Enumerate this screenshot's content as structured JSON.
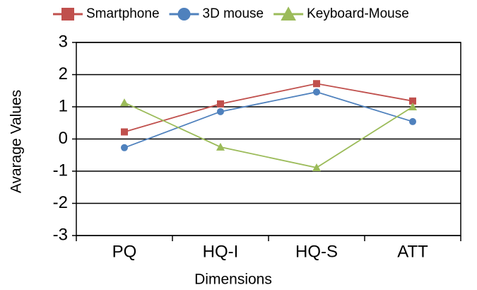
{
  "chart_data": {
    "type": "line",
    "x_label": "Dimensions",
    "y_label": "Avarage Values",
    "categories": [
      "PQ",
      "HQ-I",
      "HQ-S",
      "ATT"
    ],
    "series": [
      {
        "name": "Smartphone",
        "color": "#c0504d",
        "marker": "square",
        "values": [
          0.22,
          1.09,
          1.72,
          1.18
        ]
      },
      {
        "name": "3D mouse",
        "color": "#4f81bd",
        "marker": "circle",
        "values": [
          -0.27,
          0.85,
          1.46,
          0.54
        ]
      },
      {
        "name": "Keyboard-Mouse",
        "color": "#9bbb59",
        "marker": "triangle",
        "values": [
          1.13,
          -0.25,
          -0.89,
          1.0
        ]
      }
    ],
    "ylim": [
      -3,
      3
    ],
    "yticks": [
      -3,
      -2,
      -1,
      0,
      1,
      2,
      3
    ],
    "grid": true,
    "legend": "top"
  }
}
